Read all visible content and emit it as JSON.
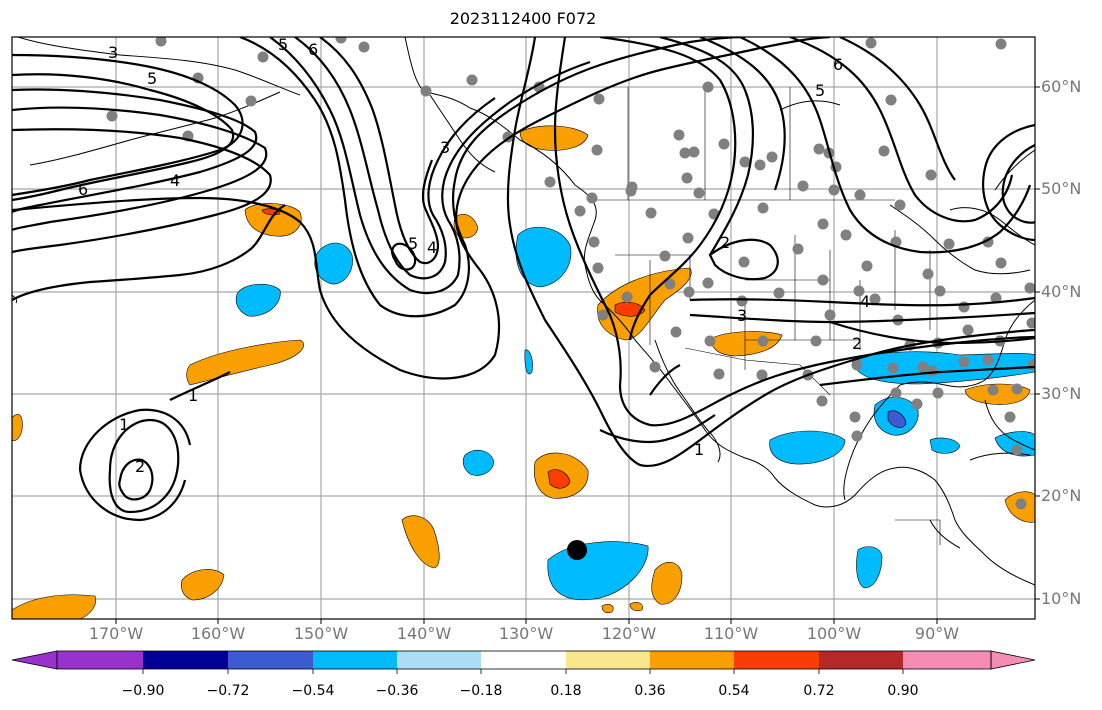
{
  "title": "2023112400 F072",
  "lat_labels": [
    "60°N",
    "50°N",
    "40°N",
    "30°N",
    "20°N",
    "10°N"
  ],
  "lon_labels": [
    "170°W",
    "160°W",
    "150°W",
    "140°W",
    "130°W",
    "120°W",
    "110°W",
    "100°W",
    "90°W"
  ],
  "colorbar": {
    "tick_labels": [
      "−0.90",
      "−0.72",
      "−0.54",
      "−0.36",
      "−0.18",
      "0.18",
      "0.36",
      "0.54",
      "0.72",
      "0.90"
    ],
    "colors": [
      "#9932cc",
      "#000096",
      "#3c5ad2",
      "#00bcff",
      "#addcf5",
      "#ffffff",
      "#fae68c",
      "#fa9f00",
      "#fa3c00",
      "#b42828",
      "#f58cb4"
    ]
  },
  "contour_labels": [
    "3",
    "5",
    "6",
    "5",
    "6",
    "4",
    "6",
    "5",
    "4",
    "3",
    "5",
    "2",
    "3",
    "4",
    "2",
    "1",
    "1",
    "2",
    "1"
  ],
  "colors": {
    "contour": "#000000",
    "coastline": "#000000",
    "grid": "#a8a8a8",
    "station_dot": "#808080",
    "marker": "#000000"
  }
}
